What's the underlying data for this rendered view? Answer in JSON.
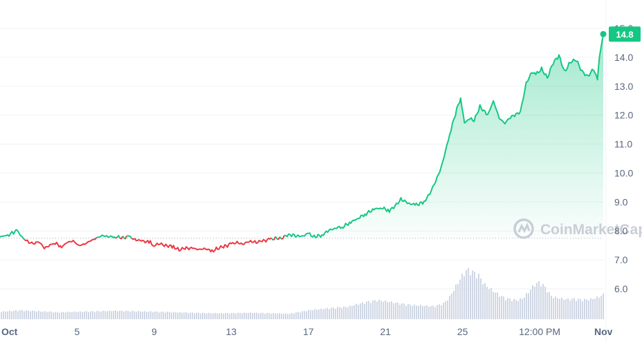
{
  "chart_data": {
    "type": "line",
    "title": "",
    "xlabel": "",
    "ylabel": "",
    "ylim": [
      6.4,
      15.0
    ],
    "yticks": [
      15.0,
      14.0,
      13.0,
      12.0,
      11.0,
      10.0,
      9.0,
      8.0,
      7.0,
      6.0
    ],
    "ytick_labels": [
      "15.0",
      "14.0",
      "13.0",
      "12.0",
      "11.0",
      "10.0",
      "9.0",
      "8.0",
      "7.0",
      "6.0"
    ],
    "xlim": [
      0,
      31.3
    ],
    "xticks": [
      0.3,
      4,
      8,
      12,
      16,
      20,
      24,
      28,
      31.3
    ],
    "xtick_labels": [
      "Oct",
      "5",
      "9",
      "13",
      "17",
      "21",
      "25",
      "12:00 PM",
      "Nov"
    ],
    "baseline": 7.75,
    "current_price": 14.8,
    "current_price_label": "14.8",
    "grid": true,
    "legend": "none",
    "colors": {
      "up": "#16c784",
      "down": "#ea3943",
      "volume": "#cfd6e4",
      "grid": "#eff2f5"
    },
    "watermark": "CoinMarketCap",
    "series": [
      {
        "x": [
          0.0,
          0.4,
          0.7,
          0.9,
          1.2,
          1.5,
          1.8,
          2.0,
          2.3,
          2.6,
          2.8,
          3.2,
          3.5,
          3.8,
          4.1,
          4.4,
          4.7,
          5.0,
          5.3,
          5.6,
          6.0,
          6.3,
          6.7,
          7.0,
          7.4,
          7.8,
          8.0,
          8.3,
          8.6,
          9.0,
          9.3,
          9.6,
          10.0,
          10.3,
          10.6,
          11.0,
          11.3,
          11.6,
          12.0,
          12.3,
          12.6,
          13.0,
          13.3,
          13.6,
          14.0,
          14.3,
          14.6,
          14.9,
          15.2,
          15.6,
          16.0,
          16.3,
          16.7,
          17.0,
          17.4,
          17.8,
          18.2,
          18.6,
          19.0,
          19.4,
          19.8,
          20.2,
          20.5,
          20.8,
          21.2,
          21.6,
          22.0,
          22.3,
          22.6,
          22.9,
          23.2,
          23.4,
          23.7,
          23.9,
          24.1,
          24.3,
          24.6,
          24.9,
          25.3,
          25.6,
          25.9,
          26.2,
          26.4,
          26.7,
          27.0,
          27.3,
          27.6,
          27.8,
          28.1,
          28.4,
          28.7,
          29.0,
          29.3,
          29.6,
          29.9,
          30.2,
          30.5,
          30.8,
          31.0,
          31.1,
          31.3
        ],
        "y": [
          7.8,
          7.85,
          7.95,
          8.0,
          7.75,
          7.6,
          7.55,
          7.65,
          7.4,
          7.5,
          7.6,
          7.45,
          7.6,
          7.65,
          7.5,
          7.55,
          7.65,
          7.75,
          7.85,
          7.8,
          7.8,
          7.75,
          7.8,
          7.7,
          7.65,
          7.6,
          7.5,
          7.55,
          7.5,
          7.45,
          7.35,
          7.4,
          7.4,
          7.35,
          7.4,
          7.3,
          7.4,
          7.45,
          7.55,
          7.6,
          7.55,
          7.65,
          7.6,
          7.65,
          7.7,
          7.75,
          7.75,
          7.85,
          7.85,
          7.8,
          7.9,
          7.8,
          7.85,
          8.0,
          8.1,
          8.15,
          8.3,
          8.45,
          8.6,
          8.75,
          8.8,
          8.7,
          8.85,
          9.1,
          8.95,
          8.9,
          9.0,
          9.3,
          9.7,
          10.2,
          11.0,
          11.5,
          12.2,
          12.6,
          11.7,
          11.9,
          11.8,
          12.3,
          12.0,
          12.5,
          11.9,
          11.7,
          11.9,
          12.0,
          12.1,
          13.1,
          13.5,
          13.4,
          13.6,
          13.3,
          13.8,
          14.05,
          13.5,
          13.85,
          13.9,
          13.5,
          13.35,
          13.6,
          13.2,
          14.0,
          14.8
        ]
      }
    ],
    "volume": {
      "x": [
        0,
        1,
        2,
        3,
        4,
        5,
        6,
        7,
        8,
        9,
        10,
        11,
        12,
        13,
        14,
        15,
        16,
        17,
        18,
        18.5,
        19,
        19.5,
        20,
        20.5,
        21,
        21.5,
        22,
        22.5,
        23,
        23.3,
        23.6,
        23.9,
        24.2,
        24.5,
        24.8,
        25.1,
        25.5,
        25.9,
        26.2,
        26.5,
        26.8,
        27.1,
        27.4,
        27.7,
        28.0,
        28.3,
        28.6,
        29.0,
        29.4,
        29.8,
        30.2,
        30.6,
        31.0,
        31.3
      ],
      "y": [
        0.15,
        0.18,
        0.16,
        0.14,
        0.15,
        0.16,
        0.17,
        0.16,
        0.15,
        0.14,
        0.13,
        0.12,
        0.12,
        0.13,
        0.12,
        0.11,
        0.18,
        0.22,
        0.25,
        0.3,
        0.35,
        0.38,
        0.36,
        0.33,
        0.3,
        0.28,
        0.27,
        0.26,
        0.32,
        0.45,
        0.65,
        0.85,
        1.0,
        0.95,
        0.88,
        0.7,
        0.58,
        0.48,
        0.42,
        0.4,
        0.38,
        0.42,
        0.55,
        0.7,
        0.75,
        0.62,
        0.45,
        0.42,
        0.4,
        0.41,
        0.39,
        0.4,
        0.44,
        0.5
      ]
    }
  }
}
